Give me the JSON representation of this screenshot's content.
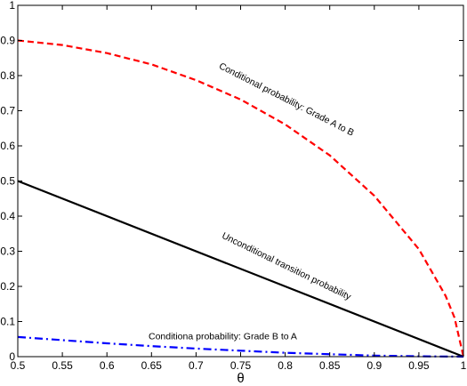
{
  "chart_data": {
    "type": "line",
    "xlabel": "θ",
    "xlim": [
      0.5,
      1
    ],
    "ylim": [
      0,
      1
    ],
    "xticks": [
      "0.5",
      "0.55",
      "0.6",
      "0.65",
      "0.7",
      "0.75",
      "0.8",
      "0.85",
      "0.9",
      "0.95",
      "1"
    ],
    "yticks": [
      "0",
      "0.1",
      "0.2",
      "0.3",
      "0.4",
      "0.5",
      "0.6",
      "0.7",
      "0.8",
      "0.9",
      "1"
    ],
    "grid": false,
    "series": [
      {
        "color": "#ff0000",
        "dash": "dashed",
        "x": [
          0.5,
          0.55,
          0.6,
          0.65,
          0.7,
          0.75,
          0.8,
          0.85,
          0.9,
          0.95,
          0.98,
          0.99,
          1.0
        ],
        "y": [
          0.9,
          0.887,
          0.864,
          0.832,
          0.787,
          0.732,
          0.661,
          0.573,
          0.458,
          0.306,
          0.173,
          0.111,
          0.0
        ]
      },
      {
        "color": "#000000",
        "dash": "solid",
        "x": [
          0.5,
          1.0
        ],
        "y": [
          0.5,
          0.0
        ]
      },
      {
        "color": "#0000ff",
        "dash": "dashdot",
        "x": [
          0.5,
          0.55,
          0.6,
          0.65,
          0.7,
          0.75,
          0.8,
          0.85,
          0.9,
          0.95,
          1.0
        ],
        "y": [
          0.056,
          0.047,
          0.038,
          0.03,
          0.023,
          0.017,
          0.011,
          0.007,
          0.003,
          0.001,
          0.0
        ]
      }
    ],
    "annotations": [
      {
        "text": "Conditional probability: Grade A to B",
        "x": 0.8,
        "y": 0.725,
        "angle": 27
      },
      {
        "text": "Unconditional transition probability",
        "x": 0.8,
        "y": 0.25,
        "angle": 26
      },
      {
        "text": "Conditiona  probability: Grade B to A",
        "x": 0.73,
        "y": 0.05,
        "angle": 0
      }
    ]
  }
}
